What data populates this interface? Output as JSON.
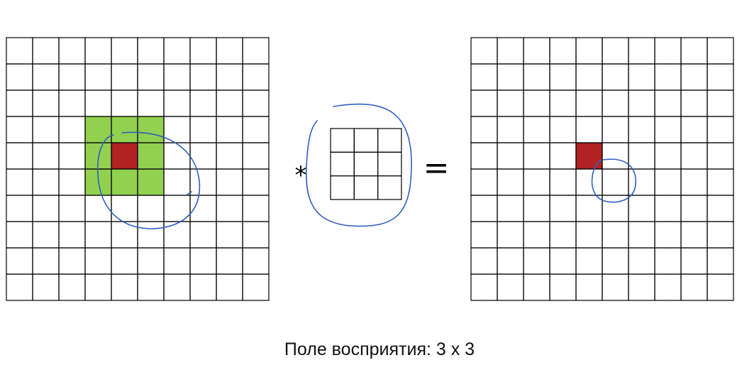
{
  "diagram": {
    "input_grid": {
      "rows": 10,
      "cols": 10
    },
    "kernel": {
      "rows": 3,
      "cols": 3
    },
    "output_grid": {
      "rows": 10,
      "cols": 10
    },
    "receptive_field": {
      "row": 5,
      "col": 5,
      "size": 3
    },
    "output_cell": {
      "row": 5,
      "col": 5
    },
    "operator_symbol": "*",
    "equals_symbol": "=",
    "colors": {
      "grid_line": "#000000",
      "receptive_field_fill": "#92d050",
      "center_cell_fill": "#b22222",
      "annotation_ink": "#2e5fbf"
    }
  },
  "caption": "Поле восприятия: 3 x 3"
}
